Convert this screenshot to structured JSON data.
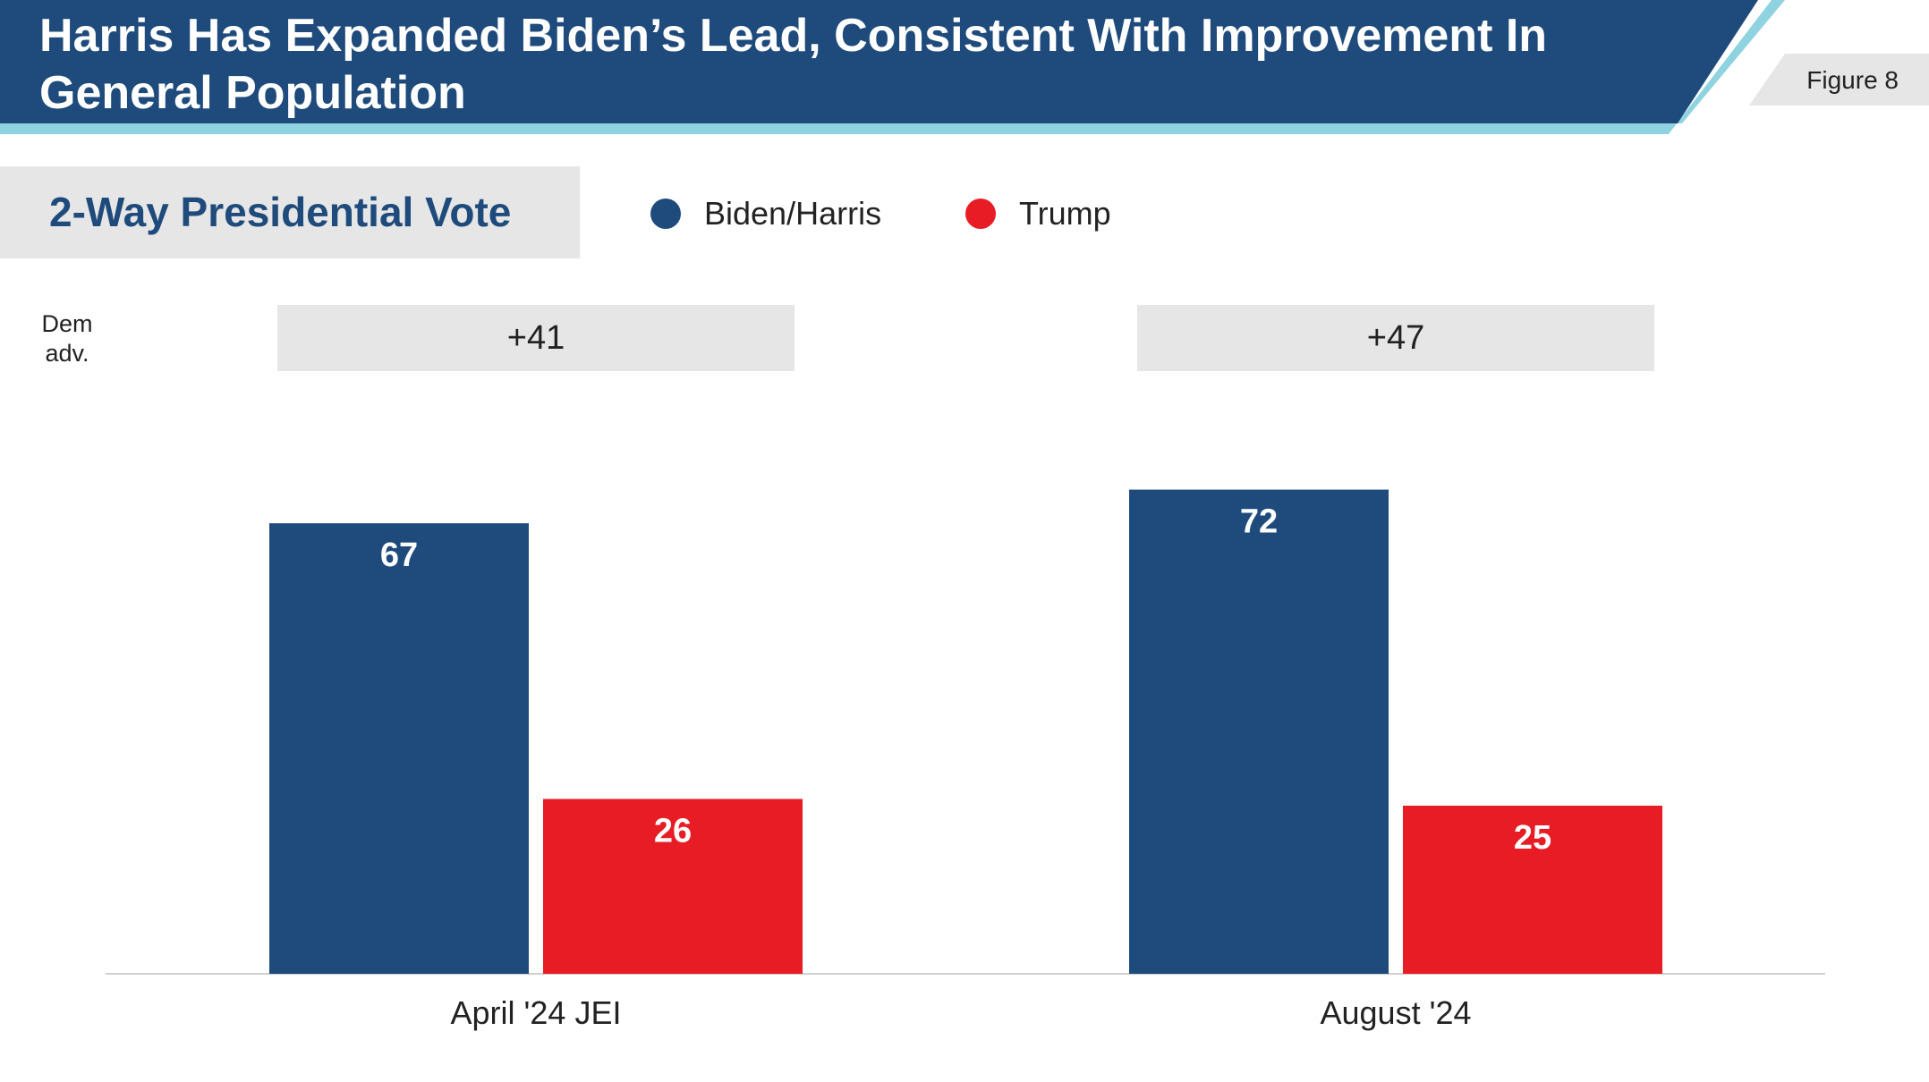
{
  "header": {
    "title": "Harris Has Expanded Biden’s Lead, Consistent With Improvement In General Population",
    "figure_label": "Figure 8"
  },
  "colors": {
    "banner": "#1f4b7c",
    "banner_accent": "#8fd3e0",
    "biden_harris": "#1f4b7c",
    "trump": "#e81c24"
  },
  "chart_data": {
    "type": "bar",
    "title": "2-Way Presidential Vote",
    "categories": [
      "April '24 JEI",
      "August '24"
    ],
    "series": [
      {
        "name": "Biden/Harris",
        "values": [
          67,
          72
        ]
      },
      {
        "name": "Trump",
        "values": [
          26,
          25
        ]
      }
    ],
    "dem_adv_label": "Dem adv.",
    "dem_adv": [
      "+41",
      "+47"
    ],
    "ylim": [
      0,
      100
    ],
    "grid": false,
    "legend_position": "top"
  }
}
